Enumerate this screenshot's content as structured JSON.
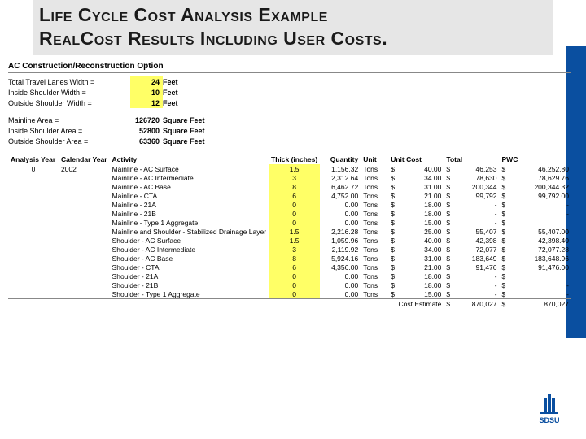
{
  "title_line1": "Life Cycle Cost Analysis Example",
  "title_line2": "RealCost Results Including User Costs.",
  "option_header": "AC Construction/Reconstruction Option",
  "widths": [
    {
      "label": "Total Travel Lanes Width =",
      "value": "24",
      "unit": "Feet"
    },
    {
      "label": "Inside Shoulder Width =",
      "value": "10",
      "unit": "Feet"
    },
    {
      "label": "Outside Shoulder Width =",
      "value": "12",
      "unit": "Feet"
    }
  ],
  "areas": [
    {
      "label": "Mainline Area =",
      "value": "126720",
      "unit": "Square Feet"
    },
    {
      "label": "Inside Shoulder Area =",
      "value": "52800",
      "unit": "Square Feet"
    },
    {
      "label": "Outside Shoulder Area =",
      "value": "63360",
      "unit": "Square Feet"
    }
  ],
  "columns": {
    "analysis_year": "Analysis Year",
    "calendar_year": "Calendar Year",
    "activity": "Activity",
    "thick": "Thick (inches)",
    "quantity": "Quantity",
    "unit": "Unit",
    "unit_cost": "Unit Cost",
    "total": "Total",
    "pwc": "PWC"
  },
  "analysis_year": "0",
  "calendar_year": "2002",
  "rows": [
    {
      "activity": "Mainline - AC Surface",
      "thick": "1.5",
      "qty": "1,156.32",
      "unit": "Tons",
      "uc": "40.00",
      "total": "46,253",
      "pwc": "46,252.80"
    },
    {
      "activity": "Mainline - AC Intermediate",
      "thick": "3",
      "qty": "2,312.64",
      "unit": "Tons",
      "uc": "34.00",
      "total": "78,630",
      "pwc": "78,629.76"
    },
    {
      "activity": "Mainline - AC Base",
      "thick": "8",
      "qty": "6,462.72",
      "unit": "Tons",
      "uc": "31.00",
      "total": "200,344",
      "pwc": "200,344.32"
    },
    {
      "activity": "Mainline - CTA",
      "thick": "6",
      "qty": "4,752.00",
      "unit": "Tons",
      "uc": "21.00",
      "total": "99,792",
      "pwc": "99,792.00"
    },
    {
      "activity": "Mainline - 21A",
      "thick": "0",
      "qty": "0.00",
      "unit": "Tons",
      "uc": "18.00",
      "total": "-",
      "pwc": "-"
    },
    {
      "activity": "Mainline - 21B",
      "thick": "0",
      "qty": "0.00",
      "unit": "Tons",
      "uc": "18.00",
      "total": "-",
      "pwc": "-"
    },
    {
      "activity": "Mainline - Type 1 Aggregate",
      "thick": "0",
      "qty": "0.00",
      "unit": "Tons",
      "uc": "15.00",
      "total": "-",
      "pwc": ""
    },
    {
      "activity": "Mainline and Shoulder - Stabilized Drainage Layer",
      "thick": "1.5",
      "qty": "2,216.28",
      "unit": "Tons",
      "uc": "25.00",
      "total": "55,407",
      "pwc": "55,407.00"
    },
    {
      "activity": "Shoulder - AC Surface",
      "thick": "1.5",
      "qty": "1,059.96",
      "unit": "Tons",
      "uc": "40.00",
      "total": "42,398",
      "pwc": "42,398.40"
    },
    {
      "activity": "Shoulder - AC Intermediate",
      "thick": "3",
      "qty": "2,119.92",
      "unit": "Tons",
      "uc": "34.00",
      "total": "72,077",
      "pwc": "72,077.28"
    },
    {
      "activity": "Shoulder - AC Base",
      "thick": "8",
      "qty": "5,924.16",
      "unit": "Tons",
      "uc": "31.00",
      "total": "183,649",
      "pwc": "183,648.96"
    },
    {
      "activity": "Shoulder - CTA",
      "thick": "6",
      "qty": "4,356.00",
      "unit": "Tons",
      "uc": "21.00",
      "total": "91,476",
      "pwc": "91,476.00"
    },
    {
      "activity": "Shoulder - 21A",
      "thick": "0",
      "qty": "0.00",
      "unit": "Tons",
      "uc": "18.00",
      "total": "-",
      "pwc": ""
    },
    {
      "activity": "Shoulder - 21B",
      "thick": "0",
      "qty": "0.00",
      "unit": "Tons",
      "uc": "18.00",
      "total": "-",
      "pwc": "-"
    },
    {
      "activity": "Shoulder - Type 1 Aggregate",
      "thick": "0",
      "qty": "0.00",
      "unit": "Tons",
      "uc": "15.00",
      "total": "-",
      "pwc": "-"
    }
  ],
  "cost_estimate_label": "Cost Estimate",
  "cost_estimate_total": "870,027",
  "cost_estimate_pwc": "870,027",
  "logo_text": "SDSU",
  "colors": {
    "brand_blue": "#0a4fa0",
    "yellow": "#ffff66",
    "title_bg": "#e6e6e6"
  }
}
